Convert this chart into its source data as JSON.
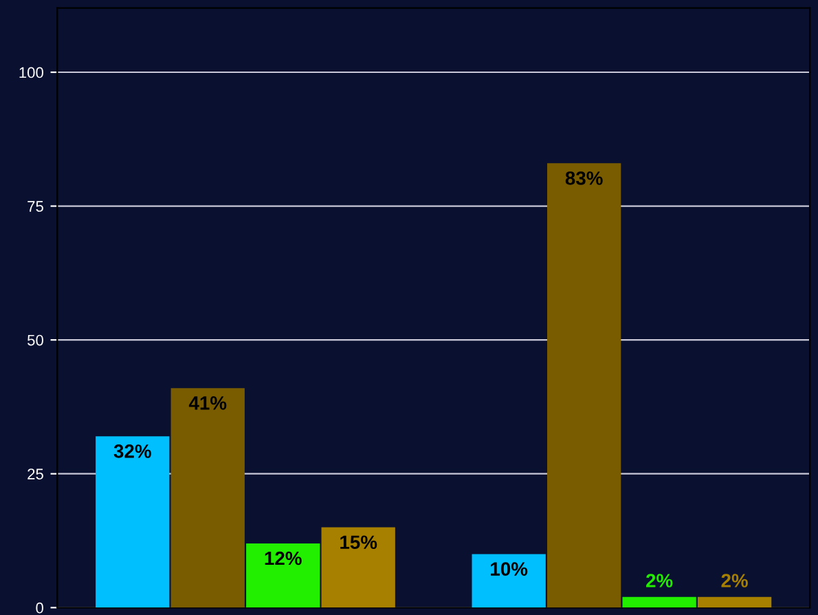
{
  "chart_data": {
    "type": "bar",
    "categories": [
      null,
      null
    ],
    "series": [
      {
        "color": "#00bfff",
        "values": [
          32,
          10
        ],
        "value_labels": [
          "32%",
          "10%"
        ]
      },
      {
        "color": "#7a5c00",
        "values": [
          41,
          83
        ],
        "value_labels": [
          "41%",
          "83%"
        ]
      },
      {
        "color": "#22ee00",
        "values": [
          12,
          2
        ],
        "value_labels": [
          "12%",
          "2%"
        ]
      },
      {
        "color": "#a88000",
        "values": [
          15,
          2
        ],
        "value_labels": [
          "15%",
          "2%"
        ]
      }
    ],
    "ylim": [
      0,
      112
    ],
    "yticks": [
      0,
      25,
      50,
      75,
      100
    ],
    "grid": "y"
  }
}
